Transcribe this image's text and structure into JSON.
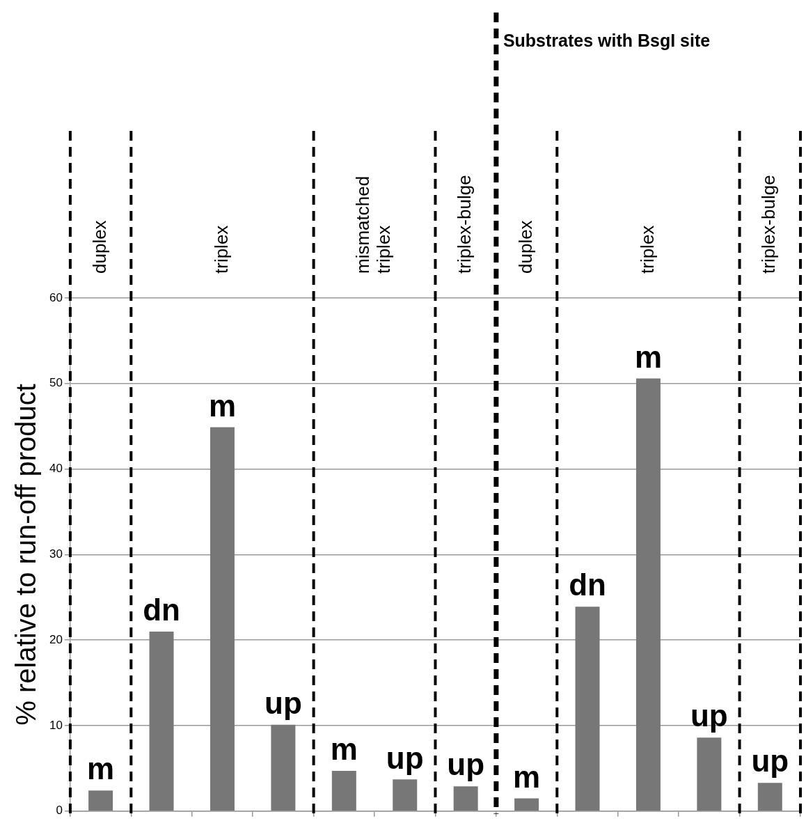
{
  "chart_data": {
    "type": "bar",
    "ylabel": "% relative to run-off product",
    "categories": [
      null,
      null,
      null,
      null,
      null,
      null,
      null,
      null,
      null,
      null,
      null,
      null
    ],
    "values": [
      2.4,
      21.0,
      44.9,
      10.1,
      4.7,
      3.7,
      2.9,
      1.5,
      23.9,
      50.6,
      8.6,
      3.3
    ],
    "value_labels": [
      "m",
      "dn",
      "m",
      "up",
      "m",
      "up",
      "up",
      "m",
      "dn",
      "m",
      "up",
      "up"
    ],
    "color": "#777777",
    "ylim": [
      0,
      60
    ],
    "yticks": [
      0,
      10,
      20,
      30,
      40,
      50,
      60
    ],
    "grid": "y",
    "tick_labels": "y",
    "legend": false,
    "annotations": [
      "duplex",
      "triplex",
      "mismatched triplex",
      "triplex-bulge",
      "duplex",
      "triplex",
      "triplex-bulge",
      "Substrates with BsgI site"
    ]
  }
}
